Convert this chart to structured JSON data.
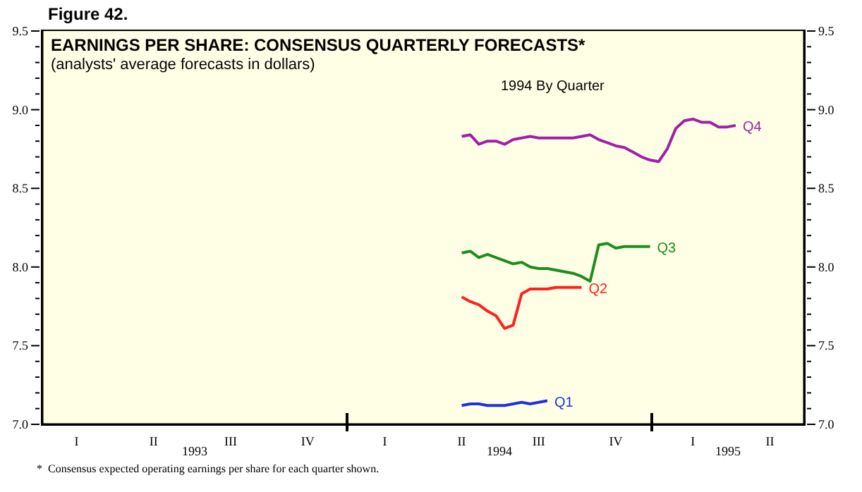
{
  "chart_data": {
    "type": "line",
    "title": "EARNINGS PER SHARE: CONSENSUS QUARTERLY FORECASTS*",
    "subtitle": "(analysts' average forecasts in dollars)",
    "annotations": [
      "Figure 42.",
      "1994 By Quarter",
      "*  Consensus expected operating earnings per share for each quarter shown.",
      "1993",
      "1994",
      "1995"
    ],
    "categories": [
      null,
      null,
      null,
      null,
      "I",
      null,
      null,
      null,
      null,
      null,
      null,
      null,
      null,
      "II",
      null,
      null,
      null,
      null,
      null,
      null,
      null,
      null,
      "III",
      null,
      null,
      null,
      null,
      null,
      null,
      null,
      null,
      "IV",
      null,
      null,
      null,
      null,
      null,
      null,
      null,
      null,
      "I",
      null,
      null,
      null,
      null,
      null,
      null,
      null,
      null,
      "II",
      null,
      null,
      null,
      null,
      null,
      null,
      null,
      null,
      "III",
      null,
      null,
      null,
      null,
      null,
      null,
      null,
      null,
      "IV",
      null,
      null,
      null,
      null,
      null,
      null,
      null,
      null,
      "I",
      null,
      null,
      null,
      null,
      null,
      null,
      null,
      null,
      "II",
      null,
      null,
      null,
      null
    ],
    "ylim": [
      7,
      9.5
    ],
    "yticks": [
      {
        "value": 7,
        "label": "7.0"
      },
      {
        "value": 7.1,
        "label": null
      },
      {
        "value": 7.2,
        "label": null
      },
      {
        "value": 7.3,
        "label": null
      },
      {
        "value": 7.4,
        "label": null
      },
      {
        "value": 7.5,
        "label": "7.5"
      },
      {
        "value": 7.6,
        "label": null
      },
      {
        "value": 7.7,
        "label": null
      },
      {
        "value": 7.8,
        "label": null
      },
      {
        "value": 7.9,
        "label": null
      },
      {
        "value": 8,
        "label": "8.0"
      },
      {
        "value": 8.1,
        "label": null
      },
      {
        "value": 8.2,
        "label": null
      },
      {
        "value": 8.3,
        "label": null
      },
      {
        "value": 8.4,
        "label": null
      },
      {
        "value": 8.5,
        "label": "8.5"
      },
      {
        "value": 8.6,
        "label": null
      },
      {
        "value": 8.7,
        "label": null
      },
      {
        "value": 8.8,
        "label": null
      },
      {
        "value": 8.9,
        "label": null
      },
      {
        "value": 9,
        "label": "9.0"
      },
      {
        "value": 9.1,
        "label": null
      },
      {
        "value": 9.2,
        "label": null
      },
      {
        "value": 9.3,
        "label": null
      },
      {
        "value": 9.4,
        "label": null
      },
      {
        "value": 9.5,
        "label": "9.5"
      }
    ],
    "y2lim": [
      7,
      9.5
    ],
    "y2ticks": [
      {
        "value": 7,
        "label": "7.0"
      },
      {
        "value": 7.1,
        "label": null
      },
      {
        "value": 7.2,
        "label": null
      },
      {
        "value": 7.3,
        "label": null
      },
      {
        "value": 7.4,
        "label": null
      },
      {
        "value": 7.5,
        "label": "7.5"
      },
      {
        "value": 7.6,
        "label": null
      },
      {
        "value": 7.7,
        "label": null
      },
      {
        "value": 7.8,
        "label": null
      },
      {
        "value": 7.9,
        "label": null
      },
      {
        "value": 8,
        "label": "8.0"
      },
      {
        "value": 8.1,
        "label": null
      },
      {
        "value": 8.2,
        "label": null
      },
      {
        "value": 8.3,
        "label": null
      },
      {
        "value": 8.4,
        "label": null
      },
      {
        "value": 8.5,
        "label": "8.5"
      },
      {
        "value": 8.6,
        "label": null
      },
      {
        "value": 8.7,
        "label": null
      },
      {
        "value": 8.8,
        "label": null
      },
      {
        "value": 8.9,
        "label": null
      },
      {
        "value": 9,
        "label": "9.0"
      },
      {
        "value": 9.1,
        "label": null
      },
      {
        "value": 9.2,
        "label": null
      },
      {
        "value": 9.3,
        "label": null
      },
      {
        "value": 9.4,
        "label": null
      },
      {
        "value": 9.5,
        "label": "9.5"
      }
    ],
    "series": [
      {
        "name": "Q4",
        "color": "#a020a8",
        "values": [
          null,
          null,
          null,
          null,
          null,
          null,
          null,
          null,
          null,
          null,
          null,
          null,
          null,
          null,
          null,
          null,
          null,
          null,
          null,
          null,
          null,
          null,
          null,
          null,
          null,
          null,
          null,
          null,
          null,
          null,
          null,
          null,
          null,
          null,
          null,
          null,
          null,
          null,
          null,
          null,
          null,
          null,
          null,
          null,
          null,
          null,
          null,
          null,
          null,
          8.83,
          8.84,
          8.78,
          8.8,
          8.8,
          8.78,
          8.81,
          8.82,
          8.83,
          8.82,
          8.82,
          8.82,
          8.82,
          8.82,
          8.83,
          8.84,
          8.81,
          8.79,
          8.77,
          8.76,
          8.73,
          8.7,
          8.68,
          8.67,
          8.75,
          8.88,
          8.93,
          8.94,
          8.92,
          8.92,
          8.89,
          8.89,
          8.9,
          null,
          null,
          null,
          null,
          null,
          null,
          null,
          null
        ]
      },
      {
        "name": "Q3",
        "color": "#1e8c1e",
        "values": [
          null,
          null,
          null,
          null,
          null,
          null,
          null,
          null,
          null,
          null,
          null,
          null,
          null,
          null,
          null,
          null,
          null,
          null,
          null,
          null,
          null,
          null,
          null,
          null,
          null,
          null,
          null,
          null,
          null,
          null,
          null,
          null,
          null,
          null,
          null,
          null,
          null,
          null,
          null,
          null,
          null,
          null,
          null,
          null,
          null,
          null,
          null,
          null,
          null,
          8.09,
          8.1,
          8.06,
          8.08,
          8.06,
          8.04,
          8.02,
          8.03,
          8,
          7.99,
          7.99,
          7.98,
          7.97,
          7.96,
          7.94,
          7.91,
          8.14,
          8.15,
          8.12,
          8.13,
          8.13,
          8.13,
          8.13,
          null,
          null,
          null,
          null,
          null,
          null,
          null,
          null,
          null,
          null,
          null,
          null,
          null,
          null,
          null,
          null,
          null,
          null
        ]
      },
      {
        "name": "Q2",
        "color": "#ff2020",
        "values": [
          null,
          null,
          null,
          null,
          null,
          null,
          null,
          null,
          null,
          null,
          null,
          null,
          null,
          null,
          null,
          null,
          null,
          null,
          null,
          null,
          null,
          null,
          null,
          null,
          null,
          null,
          null,
          null,
          null,
          null,
          null,
          null,
          null,
          null,
          null,
          null,
          null,
          null,
          null,
          null,
          null,
          null,
          null,
          null,
          null,
          null,
          null,
          null,
          null,
          7.81,
          7.78,
          7.76,
          7.72,
          7.69,
          7.61,
          7.63,
          7.83,
          7.86,
          7.86,
          7.86,
          7.87,
          7.87,
          7.87,
          7.87,
          null,
          null,
          null,
          null,
          null,
          null,
          null,
          null,
          null,
          null,
          null,
          null,
          null,
          null,
          null,
          null,
          null,
          null,
          null,
          null,
          null,
          null,
          null,
          null,
          null,
          null
        ]
      },
      {
        "name": "Q1",
        "color": "#2030e0",
        "values": [
          null,
          null,
          null,
          null,
          null,
          null,
          null,
          null,
          null,
          null,
          null,
          null,
          null,
          null,
          null,
          null,
          null,
          null,
          null,
          null,
          null,
          null,
          null,
          null,
          null,
          null,
          null,
          null,
          null,
          null,
          null,
          null,
          null,
          null,
          null,
          null,
          null,
          null,
          null,
          null,
          null,
          null,
          null,
          null,
          null,
          null,
          null,
          null,
          null,
          7.12,
          7.13,
          7.13,
          7.12,
          7.12,
          7.12,
          7.13,
          7.14,
          7.13,
          7.14,
          7.15,
          null,
          null,
          null,
          null,
          null,
          null,
          null,
          null,
          null,
          null,
          null,
          null,
          null,
          null,
          null,
          null,
          null,
          null,
          null,
          null,
          null,
          null,
          null,
          null,
          null,
          null,
          null,
          null,
          null,
          null
        ]
      }
    ]
  }
}
